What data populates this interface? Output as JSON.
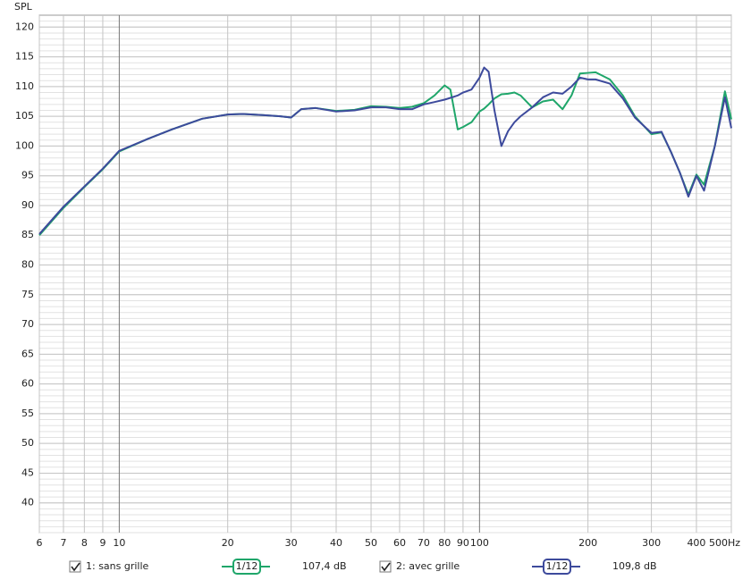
{
  "chart_data": {
    "type": "line",
    "y_label": "SPL",
    "x_unit": "Hz",
    "log_x": true,
    "grid": true,
    "xlim": [
      6,
      500
    ],
    "ylim": [
      35,
      122
    ],
    "xticks": [
      6,
      7,
      8,
      9,
      10,
      20,
      30,
      40,
      50,
      60,
      70,
      80,
      90,
      100,
      200,
      300,
      400,
      500
    ],
    "major_xticks": [
      10,
      100
    ],
    "yticks": [
      40,
      45,
      50,
      55,
      60,
      65,
      70,
      75,
      80,
      85,
      90,
      95,
      100,
      105,
      110,
      115,
      120
    ],
    "x": [
      6,
      7,
      8,
      9,
      10,
      12,
      14,
      17,
      20,
      22,
      25,
      28,
      30,
      32,
      35,
      40,
      45,
      50,
      55,
      60,
      65,
      70,
      75,
      80,
      83,
      87,
      90,
      95,
      100,
      103,
      106,
      110,
      115,
      120,
      125,
      130,
      140,
      150,
      160,
      170,
      180,
      190,
      200,
      210,
      230,
      250,
      270,
      300,
      320,
      340,
      360,
      380,
      400,
      420,
      450,
      480,
      500
    ],
    "series": [
      {
        "name": "1: sans grille",
        "color": "#1fa66a",
        "smoothing": "1/12",
        "level": "107,4 dB",
        "values": [
          85.0,
          89.6,
          93.1,
          96.1,
          99.1,
          101.2,
          102.8,
          104.6,
          105.3,
          105.4,
          105.2,
          105.0,
          104.8,
          106.2,
          106.4,
          105.9,
          106.1,
          106.7,
          106.6,
          106.4,
          106.6,
          107.2,
          108.5,
          110.2,
          109.5,
          102.8,
          103.2,
          104.0,
          105.8,
          106.3,
          107.0,
          108.0,
          108.7,
          108.8,
          109.0,
          108.5,
          106.5,
          107.5,
          107.8,
          106.2,
          108.5,
          112.2,
          112.3,
          112.4,
          111.2,
          108.5,
          105.0,
          102.0,
          102.3,
          99.0,
          95.5,
          91.8,
          95.2,
          93.5,
          100.0,
          109.2,
          104.5
        ]
      },
      {
        "name": "2: avec grille",
        "color": "#3d4a9c",
        "smoothing": "1/12",
        "level": "109,8 dB",
        "values": [
          85.2,
          89.8,
          93.2,
          96.2,
          99.2,
          101.2,
          102.8,
          104.6,
          105.3,
          105.4,
          105.2,
          105.0,
          104.8,
          106.2,
          106.4,
          105.8,
          106.0,
          106.5,
          106.5,
          106.2,
          106.2,
          107.0,
          107.4,
          107.8,
          108.1,
          108.5,
          109.0,
          109.5,
          111.5,
          113.2,
          112.5,
          106.0,
          100.0,
          102.5,
          104.0,
          105.0,
          106.5,
          108.2,
          109.0,
          108.8,
          110.0,
          111.5,
          111.2,
          111.2,
          110.5,
          108.0,
          104.8,
          102.2,
          102.4,
          99.0,
          95.5,
          91.5,
          95.0,
          92.5,
          100.0,
          108.2,
          103.0
        ]
      }
    ]
  }
}
